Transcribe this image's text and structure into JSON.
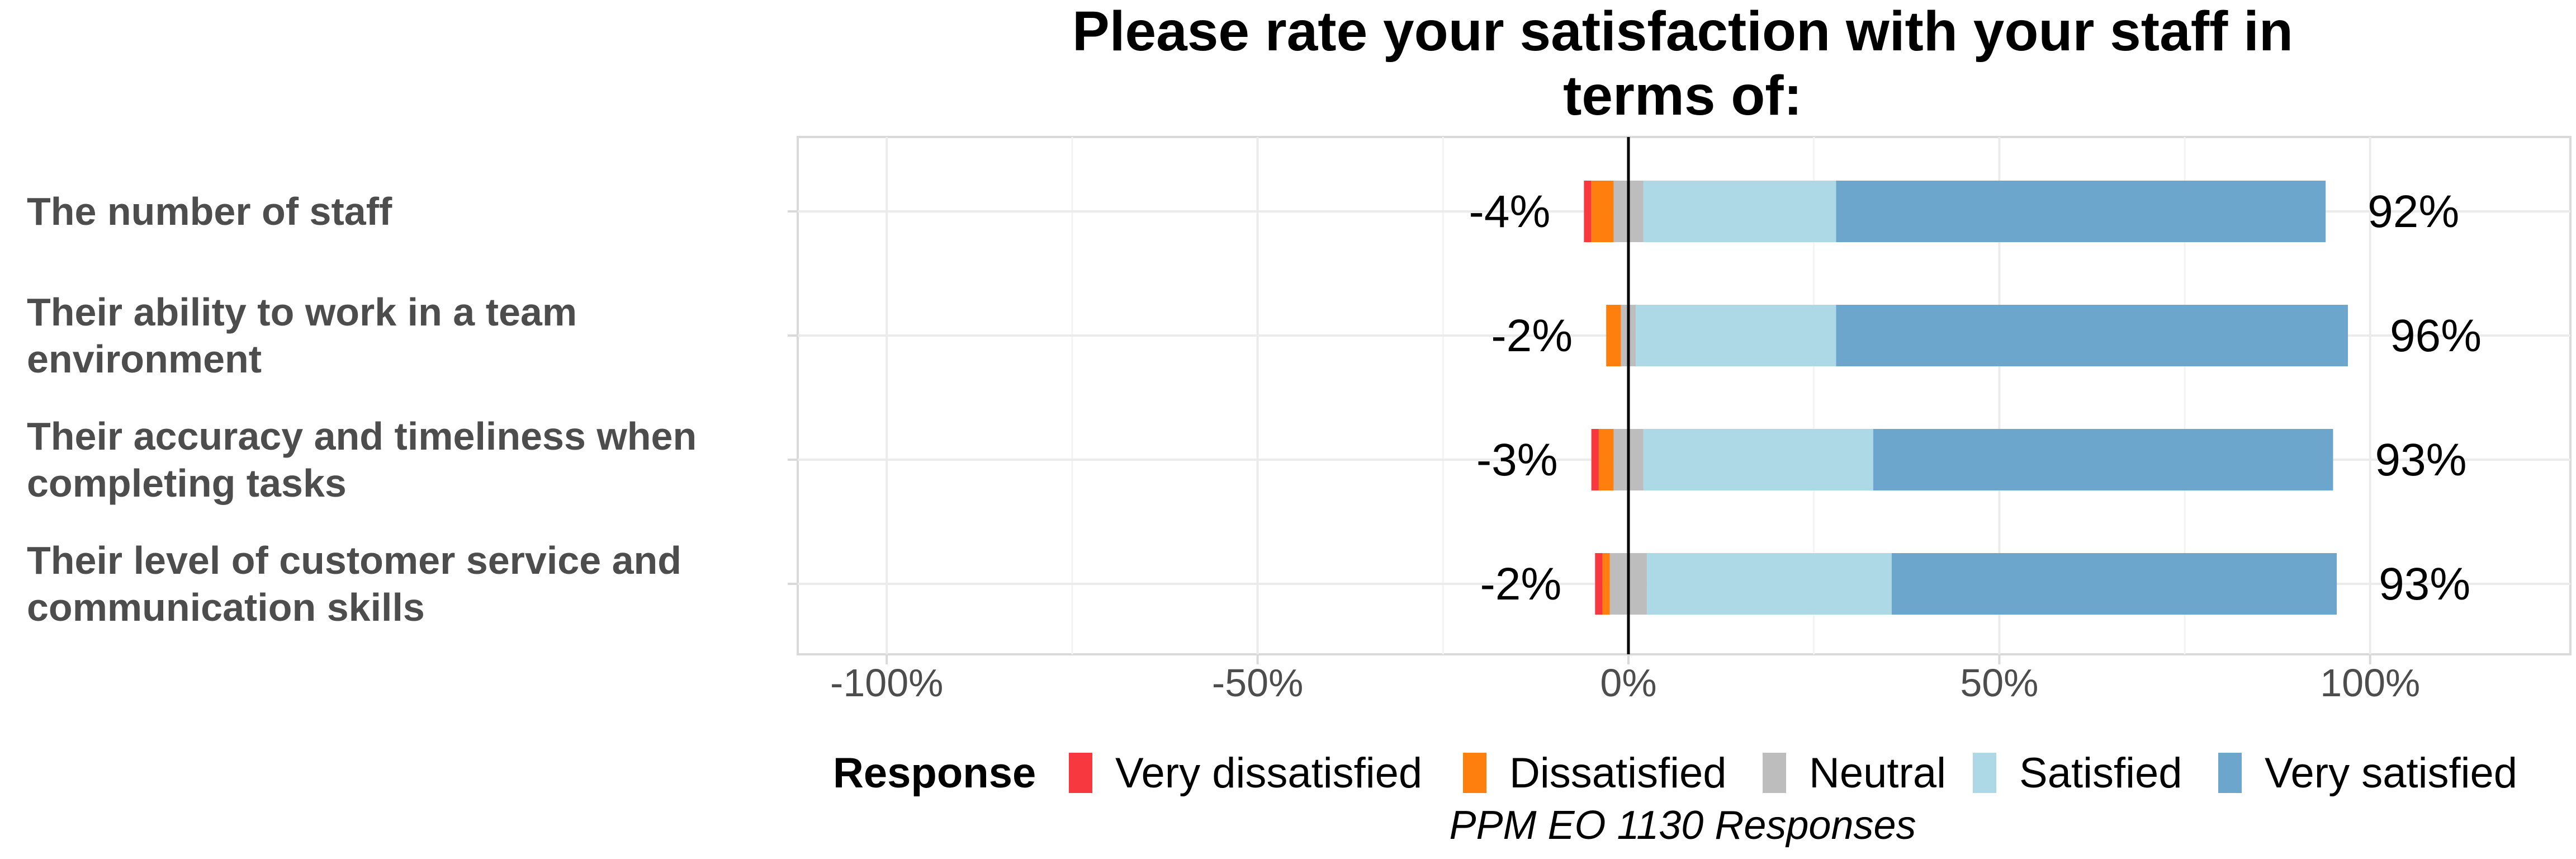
{
  "chart_data": {
    "type": "bar",
    "orientation": "horizontal-diverging-stacked",
    "title": "Please rate your satisfaction with your staff in terms of:",
    "caption": "PPM EO 1130 Responses",
    "xlim": [
      -112,
      127
    ],
    "xticks": [
      -100,
      -50,
      0,
      50,
      100
    ],
    "xtick_labels": [
      "-100%",
      "-50%",
      "0%",
      "50%",
      "100%"
    ],
    "grid": true,
    "legend_position": "bottom",
    "legend_title": "Response",
    "categories": [
      "The number of staff",
      "Their ability to work in a team environment",
      "Their accuracy and timeliness when completing tasks",
      "Their level of customer service and communication skills"
    ],
    "category_label_lines": [
      [
        "The number of staff"
      ],
      [
        "Their ability to work in a team",
        "environment"
      ],
      [
        "Their accuracy and timeliness when",
        "completing tasks"
      ],
      [
        "Their level of customer service and",
        "communication skills"
      ]
    ],
    "series": [
      {
        "name": "Very dissatisfied",
        "color": "#f8383f",
        "values": [
          1,
          0,
          1,
          1
        ]
      },
      {
        "name": "Dissatisfied",
        "color": "#ff7f0e",
        "values": [
          3,
          2,
          2,
          1
        ]
      },
      {
        "name": "Neutral",
        "color": "#bdbdbd",
        "values": [
          4,
          2,
          4,
          5
        ]
      },
      {
        "name": "Satisfied",
        "color": "#add8e6",
        "values": [
          26,
          27,
          31,
          33
        ]
      },
      {
        "name": "Very satisfied",
        "color": "#6ca6cd",
        "values": [
          66,
          69,
          62,
          60
        ]
      }
    ],
    "negative_labels": [
      "-4%",
      "-2%",
      "-3%",
      "-2%"
    ],
    "positive_labels": [
      "92%",
      "96%",
      "93%",
      "93%"
    ]
  }
}
